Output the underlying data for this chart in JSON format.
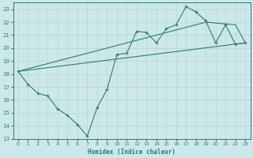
{
  "xlabel": "Humidex (Indice chaleur)",
  "bg_color": "#cce8ea",
  "grid_color": "#b8d8da",
  "line_color": "#2e7d6e",
  "xlim": [
    -0.5,
    23.5
  ],
  "ylim": [
    13,
    23.5
  ],
  "xticks": [
    0,
    1,
    2,
    3,
    4,
    5,
    6,
    7,
    8,
    9,
    10,
    11,
    12,
    13,
    14,
    15,
    16,
    17,
    18,
    19,
    20,
    21,
    22,
    23
  ],
  "yticks": [
    13,
    14,
    15,
    16,
    17,
    18,
    19,
    20,
    21,
    22,
    23
  ],
  "line1_x": [
    0,
    1,
    2,
    3,
    4,
    5,
    6,
    7,
    8,
    9,
    10,
    11,
    12,
    13,
    14,
    15,
    16,
    17,
    18,
    19,
    20,
    21,
    22,
    23
  ],
  "line1_y": [
    18.2,
    17.2,
    16.5,
    16.3,
    15.3,
    14.8,
    14.1,
    13.2,
    15.4,
    16.8,
    19.5,
    19.6,
    21.3,
    21.2,
    20.4,
    21.5,
    21.8,
    23.2,
    22.8,
    22.1,
    20.4,
    21.8,
    20.3,
    20.4
  ],
  "line2_x": [
    0,
    23
  ],
  "line2_y": [
    18.2,
    20.4
  ],
  "line3_x": [
    0,
    19,
    22,
    23
  ],
  "line3_y": [
    18.2,
    22.0,
    21.8,
    20.4
  ]
}
